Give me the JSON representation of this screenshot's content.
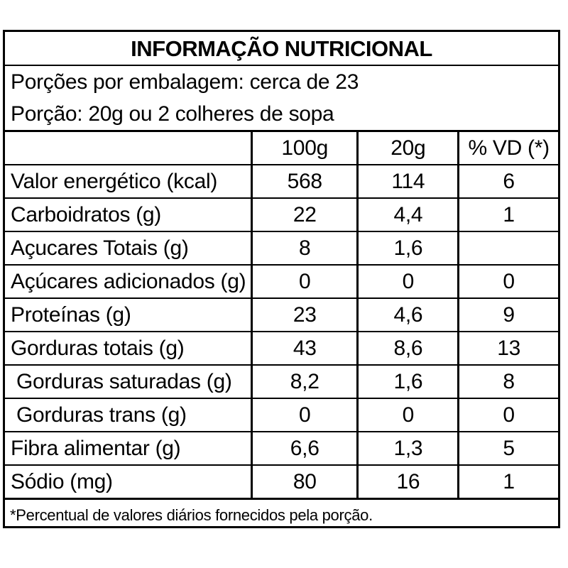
{
  "table": {
    "title": "INFORMAÇÃO NUTRICIONAL",
    "servings_line": "Porções por embalagem: cerca de 23",
    "portion_line": "Porção: 20g ou 2 colheres de sopa",
    "columns": [
      "",
      "100g",
      "20g",
      "% VD (*)"
    ],
    "rows": [
      {
        "label": "Valor energético (kcal)",
        "per100g": "568",
        "per20g": "114",
        "vd": "6",
        "indent": false
      },
      {
        "label": "Carboidratos (g)",
        "per100g": "22",
        "per20g": "4,4",
        "vd": "1",
        "indent": false
      },
      {
        "label": "Açucares Totais (g)",
        "per100g": "8",
        "per20g": "1,6",
        "vd": "",
        "indent": false
      },
      {
        "label": "Açúcares adicionados (g)",
        "per100g": "0",
        "per20g": "0",
        "vd": "0",
        "indent": false
      },
      {
        "label": "Proteínas (g)",
        "per100g": "23",
        "per20g": "4,6",
        "vd": "9",
        "indent": false
      },
      {
        "label": "Gorduras totais (g)",
        "per100g": "43",
        "per20g": "8,6",
        "vd": "13",
        "indent": false
      },
      {
        "label": "Gorduras saturadas (g)",
        "per100g": "8,2",
        "per20g": "1,6",
        "vd": "8",
        "indent": true
      },
      {
        "label": "Gorduras trans (g)",
        "per100g": "0",
        "per20g": "0",
        "vd": "0",
        "indent": true
      },
      {
        "label": "Fibra alimentar (g)",
        "per100g": "6,6",
        "per20g": "1,3",
        "vd": "5",
        "indent": false
      },
      {
        "label": "Sódio (mg)",
        "per100g": "80",
        "per20g": "16",
        "vd": "1",
        "indent": false
      }
    ],
    "footnote": "*Percentual de valores diários fornecidos pela porção."
  },
  "colors": {
    "background": "#ffffff",
    "border": "#000000",
    "text": "#000000"
  }
}
